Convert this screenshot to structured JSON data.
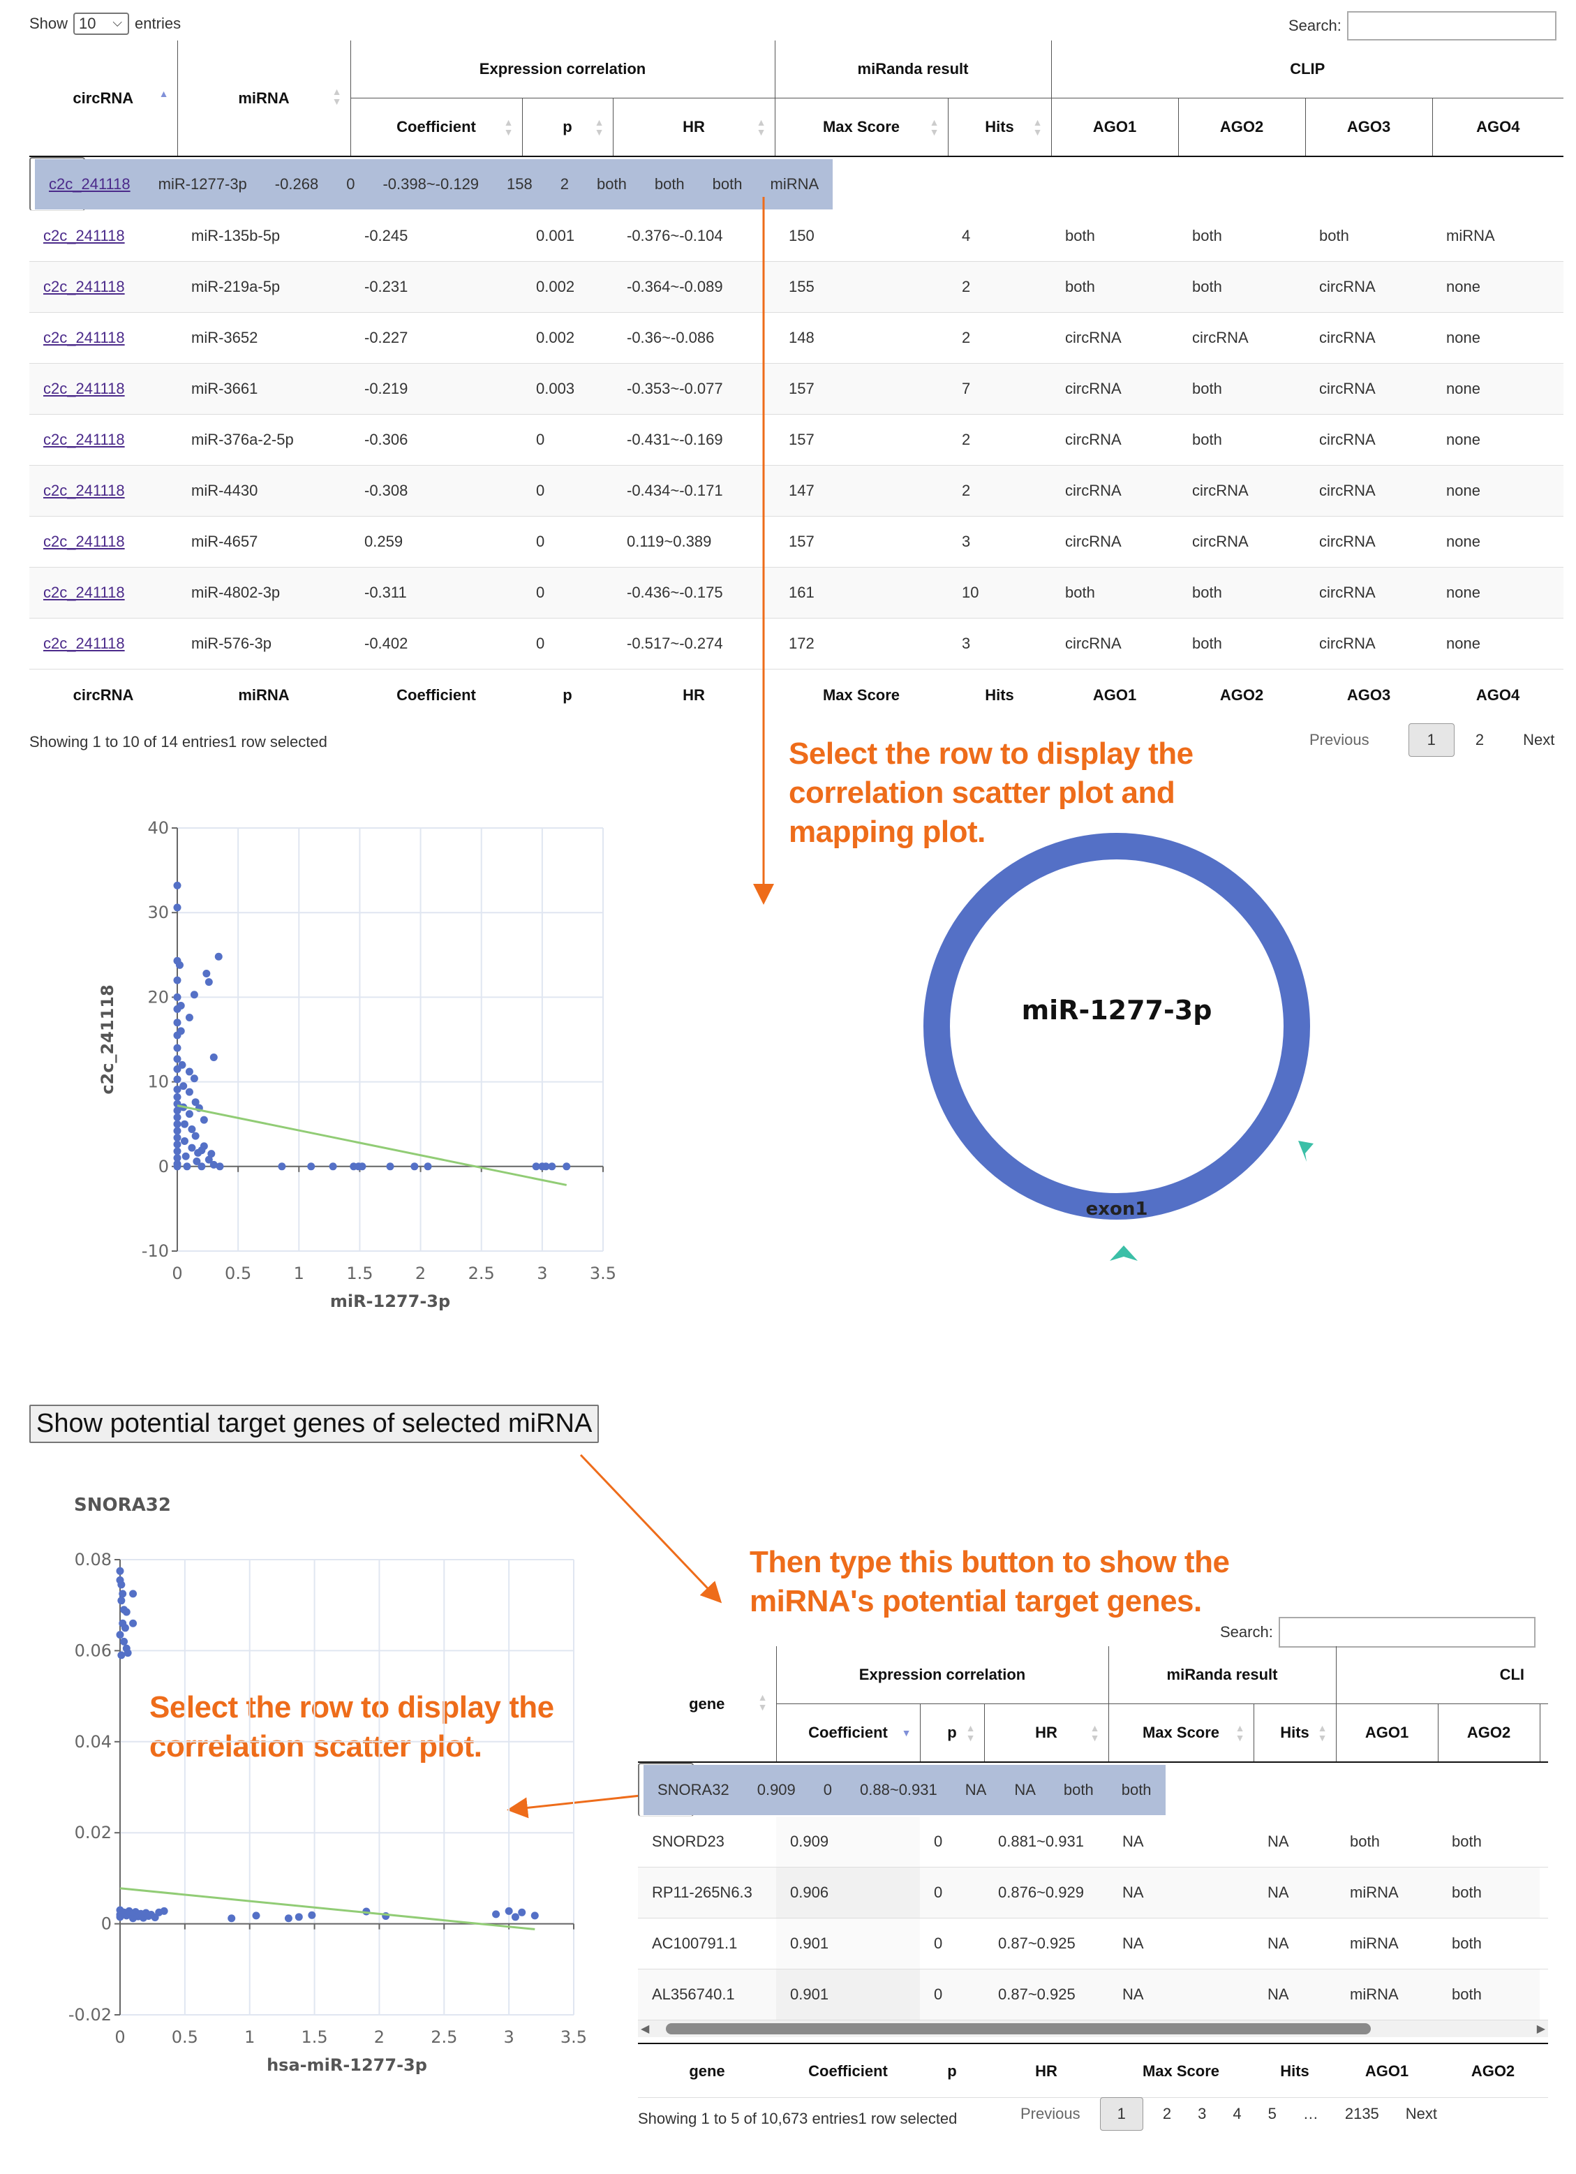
{
  "top": {
    "length_prefix": "Show",
    "length_value": "10",
    "length_suffix": "entries",
    "search_label": "Search:",
    "search_value": "",
    "group_headers": [
      "Expression correlation",
      "miRanda result",
      "CLIP"
    ],
    "sub_headers": [
      "Coefficient",
      "p",
      "HR",
      "Max Score",
      "Hits",
      "AGO1",
      "AGO2",
      "AGO3",
      "AGO4"
    ],
    "columns": [
      "circRNA",
      "miRNA",
      "Coefficient",
      "p",
      "HR",
      "Max Score",
      "Hits",
      "AGO1",
      "AGO2",
      "AGO3",
      "AGO4"
    ],
    "rows": [
      [
        "c2c_241118",
        "miR-1277-3p",
        "-0.268",
        "0",
        "-0.398~-0.129",
        "158",
        "2",
        "both",
        "both",
        "both",
        "miRNA"
      ],
      [
        "c2c_241118",
        "miR-135b-5p",
        "-0.245",
        "0.001",
        "-0.376~-0.104",
        "150",
        "4",
        "both",
        "both",
        "both",
        "miRNA"
      ],
      [
        "c2c_241118",
        "miR-219a-5p",
        "-0.231",
        "0.002",
        "-0.364~-0.089",
        "155",
        "2",
        "both",
        "both",
        "circRNA",
        "none"
      ],
      [
        "c2c_241118",
        "miR-3652",
        "-0.227",
        "0.002",
        "-0.36~-0.086",
        "148",
        "2",
        "circRNA",
        "circRNA",
        "circRNA",
        "none"
      ],
      [
        "c2c_241118",
        "miR-3661",
        "-0.219",
        "0.003",
        "-0.353~-0.077",
        "157",
        "7",
        "circRNA",
        "both",
        "circRNA",
        "none"
      ],
      [
        "c2c_241118",
        "miR-376a-2-5p",
        "-0.306",
        "0",
        "-0.431~-0.169",
        "157",
        "2",
        "circRNA",
        "both",
        "circRNA",
        "none"
      ],
      [
        "c2c_241118",
        "miR-4430",
        "-0.308",
        "0",
        "-0.434~-0.171",
        "147",
        "2",
        "circRNA",
        "circRNA",
        "circRNA",
        "none"
      ],
      [
        "c2c_241118",
        "miR-4657",
        "0.259",
        "0",
        "0.119~0.389",
        "157",
        "3",
        "circRNA",
        "circRNA",
        "circRNA",
        "none"
      ],
      [
        "c2c_241118",
        "miR-4802-3p",
        "-0.311",
        "0",
        "-0.436~-0.175",
        "161",
        "10",
        "both",
        "both",
        "circRNA",
        "none"
      ],
      [
        "c2c_241118",
        "miR-576-3p",
        "-0.402",
        "0",
        "-0.517~-0.274",
        "172",
        "3",
        "circRNA",
        "both",
        "circRNA",
        "none"
      ]
    ],
    "info": "Showing 1 to 10 of 14 entries1 row selected",
    "pager": {
      "previous": "Previous",
      "pages": [
        "1",
        "2"
      ],
      "next": "Next"
    }
  },
  "annotations": {
    "a1": "Select the row to display the\ncorrelation scatter plot and\nmapping plot.",
    "a2": "Then type this button to show the\nmiRNA's potential target genes.",
    "a3": "Select the row to display the\ncorrelation scatter plot."
  },
  "circ": {
    "center_label": "miR-1277-3p",
    "exon_label": "exon1",
    "ring_color": "#5470c6",
    "marker_color": "#3bbfa7"
  },
  "show_button": "Show potential target genes of selected miRNA",
  "bottom": {
    "search_label": "Search:",
    "search_value": "",
    "group_headers": [
      "Expression correlation",
      "miRanda result",
      "CLI"
    ],
    "sub_headers": [
      "Coefficient",
      "p",
      "HR",
      "Max Score",
      "Hits",
      "AGO1",
      "AGO2"
    ],
    "columns": [
      "gene",
      "Coefficient",
      "p",
      "HR",
      "Max Score",
      "Hits",
      "AGO1",
      "AGO2"
    ],
    "rows": [
      [
        "SNORA32",
        "0.909",
        "0",
        "0.88~0.931",
        "NA",
        "NA",
        "both",
        "both"
      ],
      [
        "SNORD23",
        "0.909",
        "0",
        "0.881~0.931",
        "NA",
        "NA",
        "both",
        "both"
      ],
      [
        "RP11-265N6.3",
        "0.906",
        "0",
        "0.876~0.929",
        "NA",
        "NA",
        "miRNA",
        "both"
      ],
      [
        "AC100791.1",
        "0.901",
        "0",
        "0.87~0.925",
        "NA",
        "NA",
        "miRNA",
        "both"
      ],
      [
        "AL356740.1",
        "0.901",
        "0",
        "0.87~0.925",
        "NA",
        "NA",
        "miRNA",
        "both"
      ]
    ],
    "info": "Showing 1 to 5 of 10,673 entries1 row selected",
    "pager": {
      "previous": "Previous",
      "pages": [
        "1",
        "2",
        "3",
        "4",
        "5",
        "…",
        "2135"
      ],
      "next": "Next"
    }
  },
  "chart_data": [
    {
      "type": "scatter",
      "title": "",
      "xlabel": "miR-1277-3p",
      "ylabel": "c2c_241118",
      "xlim": [
        0,
        3.5
      ],
      "ylim": [
        -10,
        40
      ],
      "xticks": [
        "0",
        "0.5",
        "1",
        "1.5",
        "2",
        "2.5",
        "3",
        "3.5"
      ],
      "yticks": [
        "-10",
        "0",
        "10",
        "20",
        "30",
        "40"
      ],
      "grid": true,
      "point_color": "#5470c6",
      "line_color": "#91cc75",
      "trend": [
        [
          0,
          7.2
        ],
        [
          3.2,
          -2.2
        ]
      ],
      "points": [
        [
          0,
          33.2
        ],
        [
          0,
          30.6
        ],
        [
          0,
          24.3
        ],
        [
          0,
          22
        ],
        [
          0,
          20
        ],
        [
          0,
          18.6
        ],
        [
          0,
          17
        ],
        [
          0,
          15.5
        ],
        [
          0,
          14
        ],
        [
          0,
          12.7
        ],
        [
          0,
          11.5
        ],
        [
          0,
          10.3
        ],
        [
          0,
          9.1
        ],
        [
          0,
          8.2
        ],
        [
          0,
          7.4
        ],
        [
          0,
          6.6
        ],
        [
          0,
          5.8
        ],
        [
          0,
          5
        ],
        [
          0,
          4.2
        ],
        [
          0,
          3.4
        ],
        [
          0,
          2.6
        ],
        [
          0,
          1.8
        ],
        [
          0,
          1
        ],
        [
          0,
          0.3
        ],
        [
          0,
          0
        ],
        [
          0.02,
          23.8
        ],
        [
          0.03,
          19
        ],
        [
          0.03,
          16
        ],
        [
          0.04,
          12
        ],
        [
          0.05,
          9.5
        ],
        [
          0.05,
          7
        ],
        [
          0.06,
          5
        ],
        [
          0.06,
          3
        ],
        [
          0.07,
          1.2
        ],
        [
          0.08,
          0
        ],
        [
          0.1,
          17.6
        ],
        [
          0.1,
          11.2
        ],
        [
          0.1,
          8.8
        ],
        [
          0.1,
          6.2
        ],
        [
          0.12,
          4.4
        ],
        [
          0.12,
          2.2
        ],
        [
          0.14,
          20.3
        ],
        [
          0.14,
          10.4
        ],
        [
          0.15,
          7.6
        ],
        [
          0.15,
          3.6
        ],
        [
          0.16,
          0.6
        ],
        [
          0.17,
          1.6
        ],
        [
          0.18,
          6.9
        ],
        [
          0.2,
          0
        ],
        [
          0.2,
          1.9
        ],
        [
          0.22,
          5.5
        ],
        [
          0.22,
          2.4
        ],
        [
          0.24,
          22.8
        ],
        [
          0.26,
          21.8
        ],
        [
          0.26,
          0.8
        ],
        [
          0.28,
          1.5
        ],
        [
          0.3,
          12.9
        ],
        [
          0.3,
          0.2
        ],
        [
          0.34,
          24.8
        ],
        [
          0.35,
          0
        ],
        [
          0.86,
          0
        ],
        [
          1.1,
          0
        ],
        [
          1.28,
          0
        ],
        [
          1.45,
          0
        ],
        [
          1.49,
          0
        ],
        [
          1.52,
          0
        ],
        [
          1.75,
          0
        ],
        [
          1.95,
          0
        ],
        [
          2.06,
          0
        ],
        [
          2.95,
          0
        ],
        [
          3.0,
          0
        ],
        [
          3.03,
          0
        ],
        [
          3.08,
          0
        ],
        [
          3.2,
          0
        ]
      ]
    },
    {
      "type": "scatter",
      "title": "SNORA32",
      "xlabel": "hsa-miR-1277-3p",
      "ylabel": "",
      "xlim": [
        0,
        3.5
      ],
      "ylim": [
        -0.02,
        0.08
      ],
      "xticks": [
        "0",
        "0.5",
        "1",
        "1.5",
        "2",
        "2.5",
        "3",
        "3.5"
      ],
      "yticks": [
        "-0.02",
        "0",
        "0.02",
        "0.04",
        "0.06",
        "0.08"
      ],
      "grid": true,
      "point_color": "#5470c6",
      "line_color": "#91cc75",
      "trend": [
        [
          0,
          0.0078
        ],
        [
          3.2,
          -0.0012
        ]
      ],
      "points": [
        [
          0,
          0.0775
        ],
        [
          0,
          0.0755
        ],
        [
          0.01,
          0.0745
        ],
        [
          0.02,
          0.0725
        ],
        [
          0.01,
          0.071
        ],
        [
          0.03,
          0.069
        ],
        [
          0.05,
          0.0685
        ],
        [
          0.02,
          0.066
        ],
        [
          0.04,
          0.065
        ],
        [
          0.0,
          0.0635
        ],
        [
          0.03,
          0.062
        ],
        [
          0.05,
          0.0605
        ],
        [
          0.01,
          0.059
        ],
        [
          0.06,
          0.0595
        ],
        [
          0.1,
          0.0725
        ],
        [
          0.1,
          0.066
        ],
        [
          0,
          0.003
        ],
        [
          0,
          0.002
        ],
        [
          0,
          0.0015
        ],
        [
          0.03,
          0.0025
        ],
        [
          0.05,
          0.0018
        ],
        [
          0.07,
          0.0028
        ],
        [
          0.09,
          0.002
        ],
        [
          0.1,
          0.0012
        ],
        [
          0.12,
          0.0026
        ],
        [
          0.14,
          0.0016
        ],
        [
          0.16,
          0.0022
        ],
        [
          0.18,
          0.0013
        ],
        [
          0.2,
          0.0024
        ],
        [
          0.22,
          0.0017
        ],
        [
          0.24,
          0.002
        ],
        [
          0.27,
          0.0014
        ],
        [
          0.3,
          0.0025
        ],
        [
          0.34,
          0.0028
        ],
        [
          0.86,
          0.0012
        ],
        [
          1.05,
          0.0018
        ],
        [
          1.3,
          0.0012
        ],
        [
          1.38,
          0.0015
        ],
        [
          1.48,
          0.0019
        ],
        [
          1.9,
          0.0027
        ],
        [
          2.05,
          0.0017
        ],
        [
          2.9,
          0.0021
        ],
        [
          3.0,
          0.0028
        ],
        [
          3.05,
          0.0015
        ],
        [
          3.1,
          0.0025
        ],
        [
          3.2,
          0.0018
        ]
      ]
    }
  ]
}
